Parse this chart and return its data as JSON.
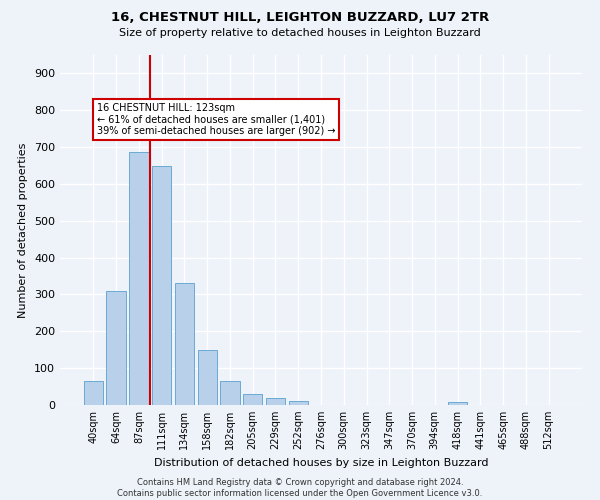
{
  "title": "16, CHESTNUT HILL, LEIGHTON BUZZARD, LU7 2TR",
  "subtitle": "Size of property relative to detached houses in Leighton Buzzard",
  "xlabel": "Distribution of detached houses by size in Leighton Buzzard",
  "ylabel": "Number of detached properties",
  "footer_line1": "Contains HM Land Registry data © Crown copyright and database right 2024.",
  "footer_line2": "Contains public sector information licensed under the Open Government Licence v3.0.",
  "bar_labels": [
    "40sqm",
    "64sqm",
    "87sqm",
    "111sqm",
    "134sqm",
    "158sqm",
    "182sqm",
    "205sqm",
    "229sqm",
    "252sqm",
    "276sqm",
    "300sqm",
    "323sqm",
    "347sqm",
    "370sqm",
    "394sqm",
    "418sqm",
    "441sqm",
    "465sqm",
    "488sqm",
    "512sqm"
  ],
  "bar_values": [
    65,
    310,
    688,
    650,
    330,
    150,
    65,
    30,
    18,
    10,
    0,
    0,
    0,
    0,
    0,
    0,
    8,
    0,
    0,
    0,
    0
  ],
  "bar_color": "#b8d0ea",
  "bar_edge_color": "#6aaad4",
  "background_color": "#eef2f9",
  "grid_color": "#ffffff",
  "annotation_text": "16 CHESTNUT HILL: 123sqm\n← 61% of detached houses are smaller (1,401)\n39% of semi-detached houses are larger (902) →",
  "annotation_box_color": "#ffffff",
  "annotation_box_edge_color": "#cc0000",
  "vline_x": 2.5,
  "vline_color": "#cc0000",
  "ylim": [
    0,
    950
  ],
  "yticks": [
    0,
    100,
    200,
    300,
    400,
    500,
    600,
    700,
    800,
    900
  ]
}
